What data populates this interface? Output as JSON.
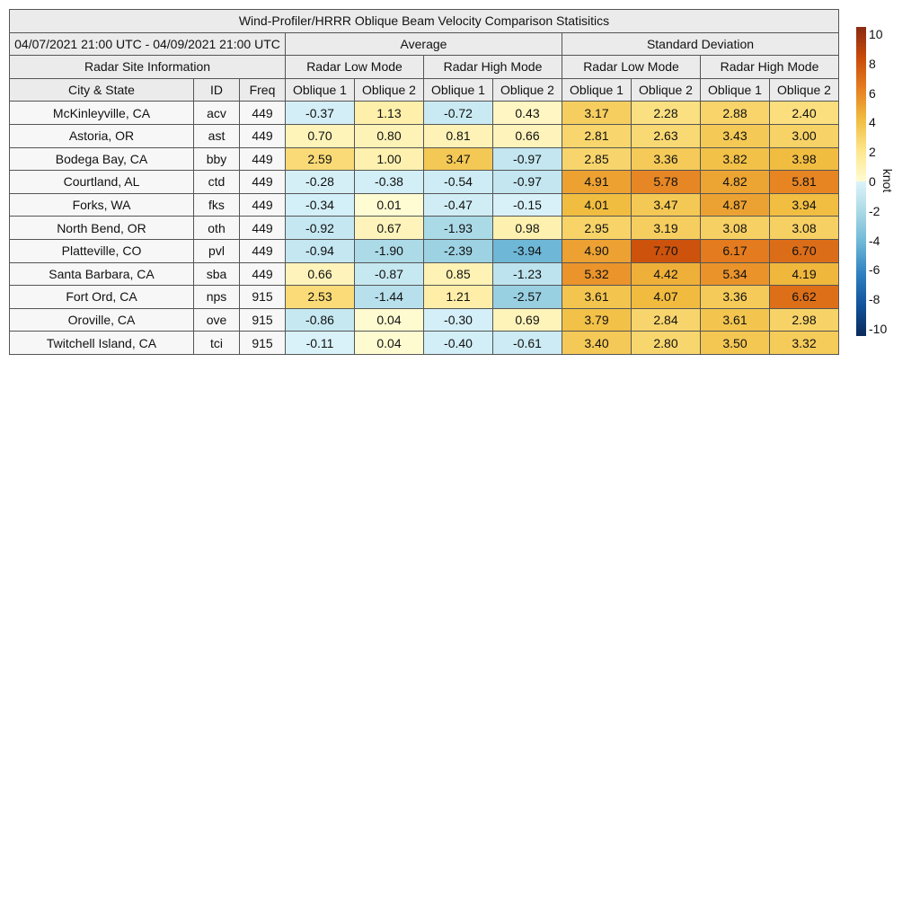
{
  "chart_data": {
    "type": "heatmap",
    "title": "Wind-Profiler/HRRR Oblique Beam Velocity Comparison Statisitics",
    "date_range": "04/07/2021 21:00 UTC - 04/09/2021 21:00 UTC",
    "site_group_label": "Radar Site Information",
    "stat_groups": [
      "Average",
      "Standard Deviation"
    ],
    "mode_groups": [
      "Radar Low Mode",
      "Radar High Mode",
      "Radar Low Mode",
      "Radar High Mode"
    ],
    "columns": [
      "City & State",
      "ID",
      "Freq",
      "Oblique 1",
      "Oblique 2",
      "Oblique 1",
      "Oblique 2",
      "Oblique 1",
      "Oblique 2",
      "Oblique 1",
      "Oblique 2"
    ],
    "rows": [
      {
        "city": "McKinleyville, CA",
        "id": "acv",
        "freq": "449",
        "values": [
          "-0.37",
          "1.13",
          "-0.72",
          "0.43",
          "3.17",
          "2.28",
          "2.88",
          "2.40"
        ]
      },
      {
        "city": "Astoria, OR",
        "id": "ast",
        "freq": "449",
        "values": [
          "0.70",
          "0.80",
          "0.81",
          "0.66",
          "2.81",
          "2.63",
          "3.43",
          "3.00"
        ]
      },
      {
        "city": "Bodega Bay, CA",
        "id": "bby",
        "freq": "449",
        "values": [
          "2.59",
          "1.00",
          "3.47",
          "-0.97",
          "2.85",
          "3.36",
          "3.82",
          "3.98"
        ]
      },
      {
        "city": "Courtland, AL",
        "id": "ctd",
        "freq": "449",
        "values": [
          "-0.28",
          "-0.38",
          "-0.54",
          "-0.97",
          "4.91",
          "5.78",
          "4.82",
          "5.81"
        ]
      },
      {
        "city": "Forks, WA",
        "id": "fks",
        "freq": "449",
        "values": [
          "-0.34",
          "0.01",
          "-0.47",
          "-0.15",
          "4.01",
          "3.47",
          "4.87",
          "3.94"
        ]
      },
      {
        "city": "North Bend, OR",
        "id": "oth",
        "freq": "449",
        "values": [
          "-0.92",
          "0.67",
          "-1.93",
          "0.98",
          "2.95",
          "3.19",
          "3.08",
          "3.08"
        ]
      },
      {
        "city": "Platteville, CO",
        "id": "pvl",
        "freq": "449",
        "values": [
          "-0.94",
          "-1.90",
          "-2.39",
          "-3.94",
          "4.90",
          "7.70",
          "6.17",
          "6.70"
        ]
      },
      {
        "city": "Santa Barbara, CA",
        "id": "sba",
        "freq": "449",
        "values": [
          "0.66",
          "-0.87",
          "0.85",
          "-1.23",
          "5.32",
          "4.42",
          "5.34",
          "4.19"
        ]
      },
      {
        "city": "Fort Ord, CA",
        "id": "nps",
        "freq": "915",
        "values": [
          "2.53",
          "-1.44",
          "1.21",
          "-2.57",
          "3.61",
          "4.07",
          "3.36",
          "6.62"
        ]
      },
      {
        "city": "Oroville, CA",
        "id": "ove",
        "freq": "915",
        "values": [
          "-0.86",
          "0.04",
          "-0.30",
          "0.69",
          "3.79",
          "2.84",
          "3.61",
          "2.98"
        ]
      },
      {
        "city": "Twitchell Island, CA",
        "id": "tci",
        "freq": "915",
        "values": [
          "-0.11",
          "0.04",
          "-0.40",
          "-0.61",
          "3.40",
          "2.80",
          "3.50",
          "3.32"
        ]
      }
    ],
    "colorbar": {
      "label": "knot",
      "range": [
        -10,
        10
      ],
      "ticks": [
        "10",
        "8",
        "6",
        "4",
        "2",
        "0",
        "-2",
        "-4",
        "-6",
        "-8",
        "-10"
      ],
      "colors": {
        "-10": "#0b2a5a",
        "-8": "#12539c",
        "-6": "#2f80c0",
        "-4": "#6cb6d6",
        "-2": "#a9d9e6",
        "0-": "#dcf3fa",
        "0+": "#fffbd2",
        "2": "#fde68c",
        "4": "#f1bd40",
        "6": "#e67f20",
        "8": "#c94b0a",
        "10": "#8a2a12"
      }
    }
  }
}
